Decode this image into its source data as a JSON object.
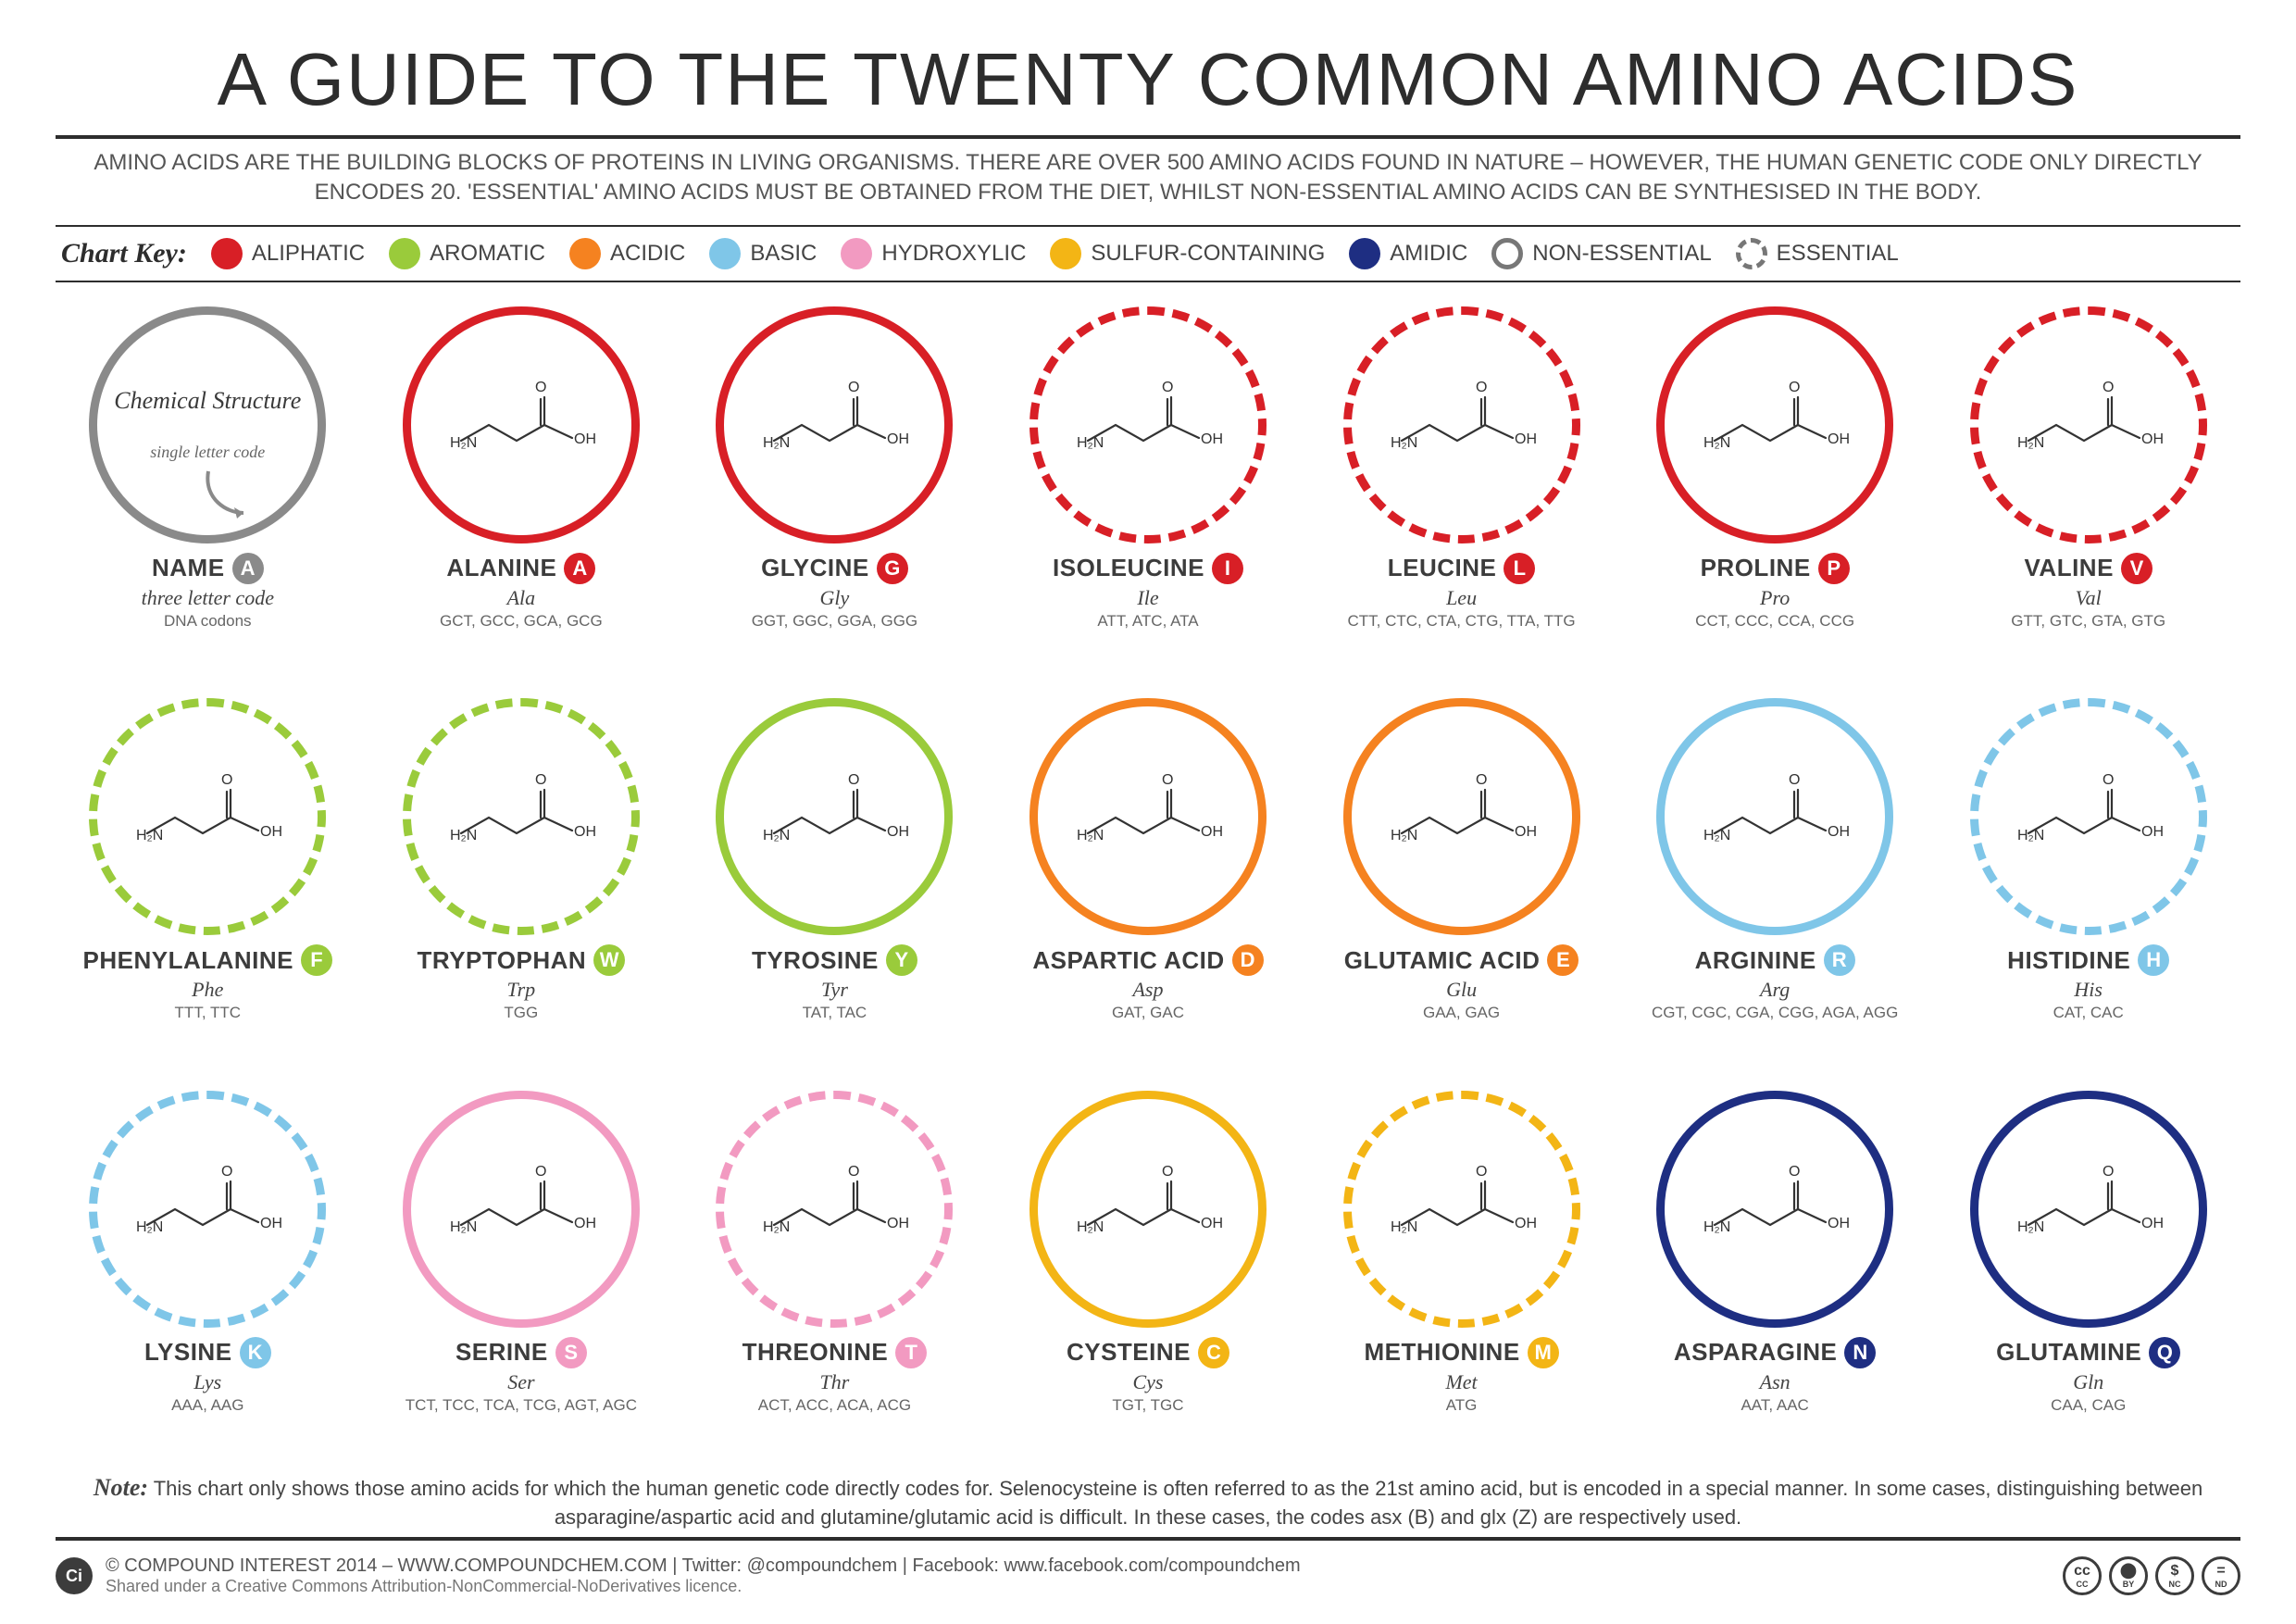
{
  "title": "A GUIDE TO THE TWENTY COMMON AMINO ACIDS",
  "subtitle": "AMINO ACIDS ARE THE BUILDING BLOCKS OF PROTEINS IN LIVING ORGANISMS. THERE ARE OVER 500 AMINO ACIDS FOUND IN NATURE – HOWEVER, THE HUMAN GENETIC CODE ONLY DIRECTLY ENCODES 20. 'ESSENTIAL' AMINO ACIDS MUST BE OBTAINED FROM THE DIET, WHILST NON-ESSENTIAL AMINO ACIDS CAN BE SYNTHESISED IN THE BODY.",
  "chart_key_label": "Chart Key:",
  "categories": {
    "aliphatic": {
      "label": "ALIPHATIC",
      "color": "#d81f26"
    },
    "aromatic": {
      "label": "AROMATIC",
      "color": "#9acb3b"
    },
    "acidic": {
      "label": "ACIDIC",
      "color": "#f58220"
    },
    "basic": {
      "label": "BASIC",
      "color": "#7fc6e8"
    },
    "hydroxylic": {
      "label": "HYDROXYLIC",
      "color": "#f29ac1"
    },
    "sulfur": {
      "label": "SULFUR-CONTAINING",
      "color": "#f3b515"
    },
    "amidic": {
      "label": "AMIDIC",
      "color": "#1e2e82"
    }
  },
  "ring_labels": {
    "non_essential": "NON-ESSENTIAL",
    "essential": "ESSENTIAL"
  },
  "ring_color_neutral": "#8a8a8a",
  "legend_card": {
    "top": "Chemical Structure",
    "mid": "single letter code",
    "name": "NAME",
    "letter": "A",
    "three": "three letter code",
    "codons": "DNA codons",
    "letter_bg": "#8a8a8a"
  },
  "amino_acids": [
    {
      "name": "ALANINE",
      "letter": "A",
      "three": "Ala",
      "codons": "GCT, GCC, GCA, GCG",
      "cat": "aliphatic",
      "essential": false
    },
    {
      "name": "GLYCINE",
      "letter": "G",
      "three": "Gly",
      "codons": "GGT, GGC, GGA, GGG",
      "cat": "aliphatic",
      "essential": false
    },
    {
      "name": "ISOLEUCINE",
      "letter": "I",
      "three": "Ile",
      "codons": "ATT, ATC, ATA",
      "cat": "aliphatic",
      "essential": true
    },
    {
      "name": "LEUCINE",
      "letter": "L",
      "three": "Leu",
      "codons": "CTT, CTC, CTA, CTG, TTA, TTG",
      "cat": "aliphatic",
      "essential": true
    },
    {
      "name": "PROLINE",
      "letter": "P",
      "three": "Pro",
      "codons": "CCT, CCC, CCA, CCG",
      "cat": "aliphatic",
      "essential": false
    },
    {
      "name": "VALINE",
      "letter": "V",
      "three": "Val",
      "codons": "GTT, GTC, GTA, GTG",
      "cat": "aliphatic",
      "essential": true
    },
    {
      "name": "PHENYLALANINE",
      "letter": "F",
      "three": "Phe",
      "codons": "TTT, TTC",
      "cat": "aromatic",
      "essential": true
    },
    {
      "name": "TRYPTOPHAN",
      "letter": "W",
      "three": "Trp",
      "codons": "TGG",
      "cat": "aromatic",
      "essential": true
    },
    {
      "name": "TYROSINE",
      "letter": "Y",
      "three": "Tyr",
      "codons": "TAT, TAC",
      "cat": "aromatic",
      "essential": false
    },
    {
      "name": "ASPARTIC ACID",
      "letter": "D",
      "three": "Asp",
      "codons": "GAT, GAC",
      "cat": "acidic",
      "essential": false
    },
    {
      "name": "GLUTAMIC ACID",
      "letter": "E",
      "three": "Glu",
      "codons": "GAA, GAG",
      "cat": "acidic",
      "essential": false
    },
    {
      "name": "ARGININE",
      "letter": "R",
      "three": "Arg",
      "codons": "CGT, CGC, CGA, CGG, AGA, AGG",
      "cat": "basic",
      "essential": false
    },
    {
      "name": "HISTIDINE",
      "letter": "H",
      "three": "His",
      "codons": "CAT, CAC",
      "cat": "basic",
      "essential": true
    },
    {
      "name": "LYSINE",
      "letter": "K",
      "three": "Lys",
      "codons": "AAA, AAG",
      "cat": "basic",
      "essential": true
    },
    {
      "name": "SERINE",
      "letter": "S",
      "three": "Ser",
      "codons": "TCT, TCC, TCA, TCG, AGT, AGC",
      "cat": "hydroxylic",
      "essential": false
    },
    {
      "name": "THREONINE",
      "letter": "T",
      "three": "Thr",
      "codons": "ACT, ACC, ACA, ACG",
      "cat": "hydroxylic",
      "essential": true
    },
    {
      "name": "CYSTEINE",
      "letter": "C",
      "three": "Cys",
      "codons": "TGT, TGC",
      "cat": "sulfur",
      "essential": false
    },
    {
      "name": "METHIONINE",
      "letter": "M",
      "three": "Met",
      "codons": "ATG",
      "cat": "sulfur",
      "essential": true
    },
    {
      "name": "ASPARAGINE",
      "letter": "N",
      "three": "Asn",
      "codons": "AAT, AAC",
      "cat": "amidic",
      "essential": false
    },
    {
      "name": "GLUTAMINE",
      "letter": "Q",
      "three": "Gln",
      "codons": "CAA, CAG",
      "cat": "amidic",
      "essential": false
    }
  ],
  "note_label": "Note:",
  "note": "This chart only shows those amino acids for which the human genetic code directly codes for. Selenocysteine is often referred to as the 21st amino acid, but is encoded in a special manner. In some cases, distinguishing between asparagine/aspartic acid and glutamine/glutamic acid is difficult. In these cases, the codes asx (B) and glx (Z) are respectively used.",
  "footer": {
    "copyright": "© COMPOUND INTEREST 2014 – WWW.COMPOUNDCHEM.COM | Twitter: @compoundchem | Facebook: www.facebook.com/compoundchem",
    "licence": "Shared under a Creative Commons Attribution-NonCommercial-NoDerivatives licence.",
    "cc": [
      "CC",
      "BY",
      "NC",
      "ND"
    ],
    "cc_glyph": {
      "CC": "cc",
      "BY": "⬤",
      "NC": "$",
      "ND": "="
    }
  },
  "style": {
    "title_fontsize": 80,
    "subtitle_fontsize": 24,
    "circle_diameter": 256,
    "circle_border_width": 9,
    "grid_cols": 7,
    "grid_rows": 3,
    "background": "#ffffff",
    "text_color": "#3c3c3c"
  }
}
